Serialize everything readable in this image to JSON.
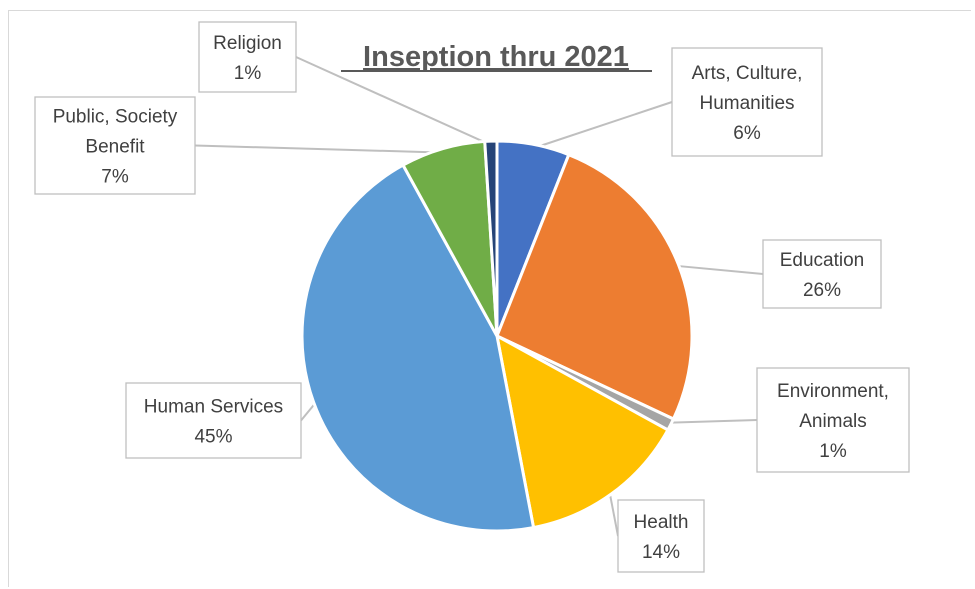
{
  "chart_data": {
    "type": "pie",
    "title": "Inseption thru 2021",
    "slices": [
      {
        "name": "Arts, Culture, Humanities",
        "label_lines": [
          "Arts, Culture,",
          "Humanities",
          "6%"
        ],
        "value": 6,
        "color": "#4472C4"
      },
      {
        "name": "Education",
        "label_lines": [
          "Education",
          "26%"
        ],
        "value": 26,
        "color": "#ED7D31"
      },
      {
        "name": "Environment, Animals",
        "label_lines": [
          "Environment,",
          "Animals",
          "1%"
        ],
        "value": 1,
        "color": "#A5A5A5"
      },
      {
        "name": "Health",
        "label_lines": [
          "Health",
          "14%"
        ],
        "value": 14,
        "color": "#FFC000"
      },
      {
        "name": "Human Services",
        "label_lines": [
          "Human Services",
          "45%"
        ],
        "value": 45,
        "color": "#5B9BD5"
      },
      {
        "name": "Public, Society Benefit",
        "label_lines": [
          "Public, Society",
          "Benefit",
          "7%"
        ],
        "value": 7,
        "color": "#70AD47"
      },
      {
        "name": "Religion",
        "label_lines": [
          "Religion",
          "1%"
        ],
        "value": 1,
        "color": "#264478"
      }
    ]
  }
}
